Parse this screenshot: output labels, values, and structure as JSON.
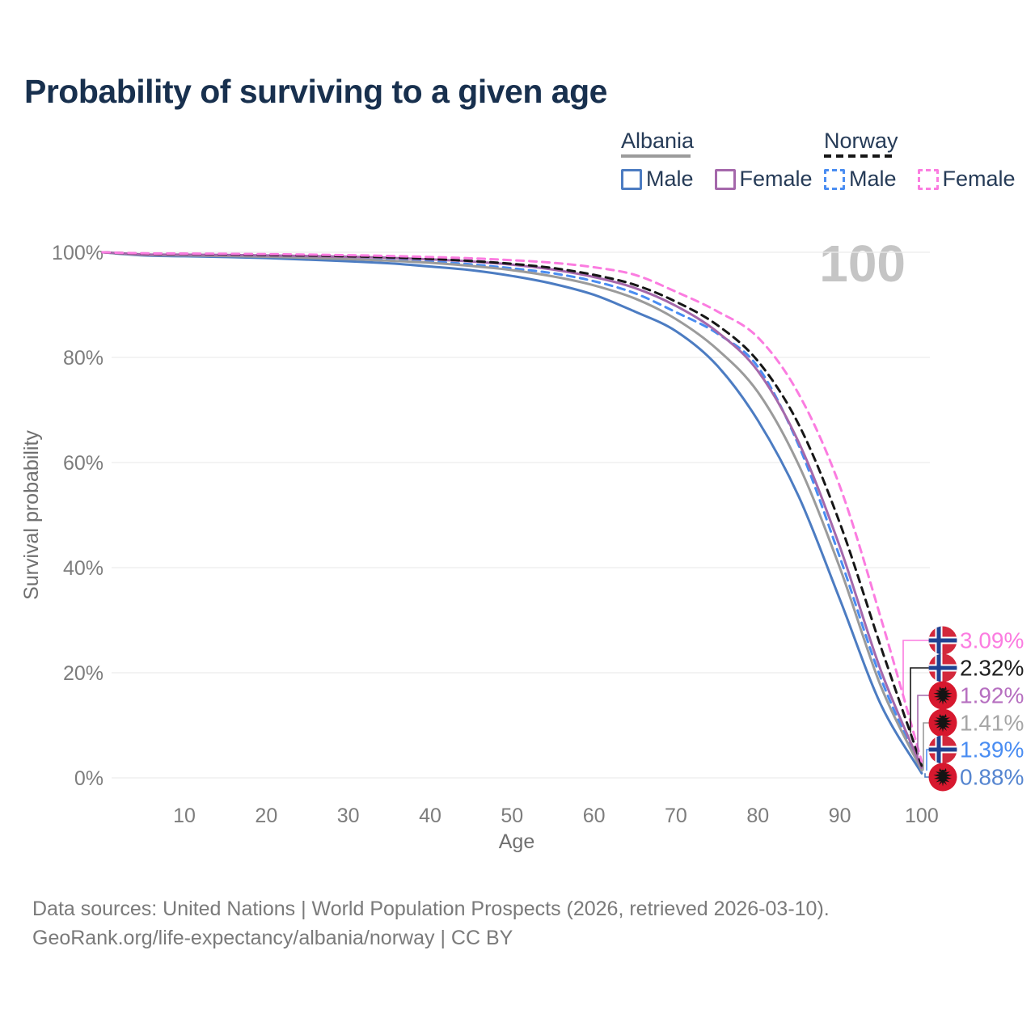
{
  "title": "Probability of surviving to a given age",
  "watermark": "100",
  "legend": {
    "groups": [
      {
        "country": "Albania",
        "line_style": "solid",
        "line_color": "#9b9b9b",
        "items": [
          {
            "label": "Male",
            "color": "#4c7cc2",
            "line_style": "solid"
          },
          {
            "label": "Female",
            "color": "#a568ab",
            "line_style": "solid"
          }
        ]
      },
      {
        "country": "Norway",
        "line_style": "dashed",
        "line_color": "#161616",
        "items": [
          {
            "label": "Male",
            "color": "#4a8df2",
            "line_style": "dashed"
          },
          {
            "label": "Female",
            "color": "#fb7ce0",
            "line_style": "dashed"
          }
        ]
      }
    ]
  },
  "chart_data": {
    "type": "line",
    "title": "Probability of surviving to a given age",
    "xlabel": "Age",
    "ylabel": "Survival probability",
    "xlim": [
      0,
      100
    ],
    "ylim": [
      0,
      100
    ],
    "grid": "horizontal",
    "legend_position": "top-right",
    "x_ticks": [
      10,
      20,
      30,
      40,
      50,
      60,
      70,
      80,
      90,
      100
    ],
    "y_tick_values": [
      100,
      80,
      60,
      40,
      20,
      0
    ],
    "y_tick_labels": [
      "100%",
      "80%",
      "60%",
      "40%",
      "20%",
      "0%"
    ],
    "ages": [
      0,
      5,
      10,
      15,
      20,
      25,
      30,
      35,
      40,
      45,
      50,
      55,
      60,
      65,
      70,
      75,
      80,
      85,
      90,
      95,
      100
    ],
    "series": [
      {
        "name": "Norway Female",
        "country": "Norway",
        "sex": "Female",
        "flag": "norway",
        "dashed": true,
        "color": "#fb7ce0",
        "label_color": "#fb7ce0",
        "end_label": "3.09%",
        "values": [
          100,
          99.8,
          99.75,
          99.7,
          99.65,
          99.55,
          99.45,
          99.3,
          99.1,
          98.85,
          98.5,
          98.0,
          97.15,
          95.7,
          92.5,
          88.8,
          83.8,
          73.0,
          55.5,
          30.5,
          3.09
        ]
      },
      {
        "name": "Norway Both sexes",
        "country": "Norway",
        "sex": "Both",
        "flag": "norway",
        "dashed": true,
        "color": "#161616",
        "label_color": "#1f1f1f",
        "end_label": "2.32%",
        "values": [
          100,
          99.75,
          99.7,
          99.6,
          99.5,
          99.4,
          99.25,
          99.05,
          98.75,
          98.35,
          97.8,
          97.0,
          95.7,
          93.8,
          90.6,
          86.2,
          79.3,
          67.2,
          48.5,
          25.0,
          2.32
        ]
      },
      {
        "name": "Albania Female",
        "country": "Albania",
        "sex": "Female",
        "flag": "albania",
        "dashed": false,
        "color": "#a568ab",
        "label_color": "#b66fc0",
        "end_label": "1.92%",
        "values": [
          100,
          99.6,
          99.55,
          99.5,
          99.4,
          99.3,
          99.15,
          98.95,
          98.65,
          98.25,
          97.65,
          96.7,
          95.3,
          93.2,
          89.8,
          84.9,
          77.4,
          63.8,
          44.0,
          20.5,
          1.92
        ]
      },
      {
        "name": "Albania Both sexes",
        "country": "Albania",
        "sex": "Both",
        "flag": "albania",
        "dashed": false,
        "color": "#9b9b9b",
        "label_color": "#a6a6a6",
        "end_label": "1.41%",
        "values": [
          100,
          99.5,
          99.4,
          99.3,
          99.15,
          98.95,
          98.7,
          98.4,
          98.0,
          97.4,
          96.6,
          95.4,
          93.7,
          91.2,
          87.3,
          81.6,
          73.4,
          59.5,
          40.0,
          17.5,
          1.41
        ]
      },
      {
        "name": "Norway Male",
        "country": "Norway",
        "sex": "Male",
        "flag": "norway",
        "dashed": true,
        "color": "#4a8df2",
        "label_color": "#4a8df2",
        "end_label": "1.39%",
        "values": [
          100,
          99.7,
          99.65,
          99.55,
          99.4,
          99.2,
          98.95,
          98.65,
          98.25,
          97.7,
          96.95,
          96.0,
          94.5,
          92.2,
          88.6,
          84.6,
          78.2,
          63.2,
          42.0,
          19.0,
          1.39
        ]
      },
      {
        "name": "Albania Male",
        "country": "Albania",
        "sex": "Male",
        "flag": "albania",
        "dashed": false,
        "color": "#4c7cc2",
        "label_color": "#5585d0",
        "end_label": "0.88%",
        "values": [
          100,
          99.4,
          99.25,
          99.1,
          98.9,
          98.6,
          98.3,
          97.9,
          97.3,
          96.6,
          95.5,
          94.0,
          91.9,
          88.7,
          85.0,
          78.5,
          68.0,
          53.5,
          34.0,
          14.0,
          0.88
        ]
      }
    ]
  },
  "footer": {
    "line1": "Data sources: United Nations | World Population Prospects (2026, retrieved 2026-03-10).",
    "line2": "GeoRank.org/life-expectancy/albania/norway | CC BY"
  }
}
